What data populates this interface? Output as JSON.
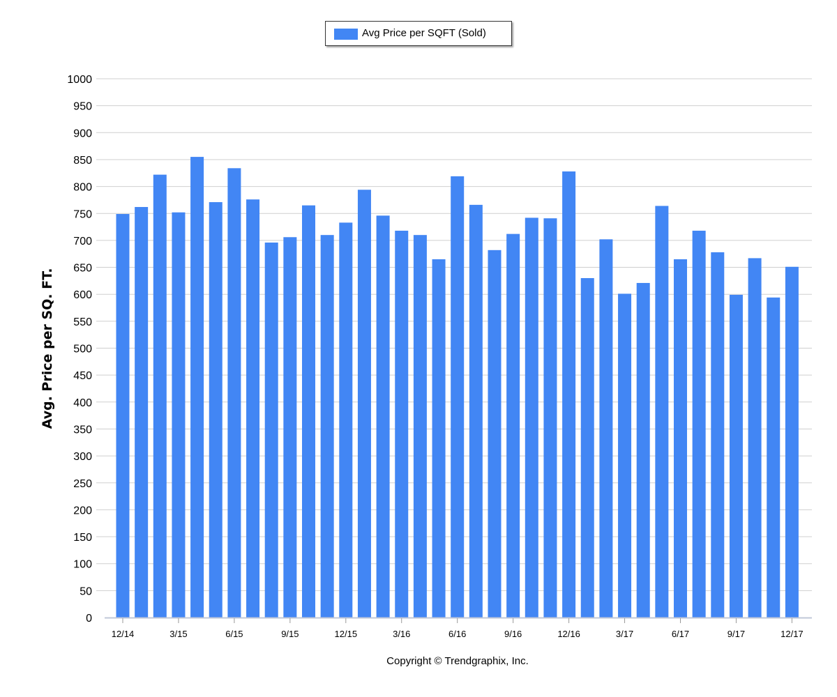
{
  "chart_data": {
    "type": "bar",
    "ylabel": "Avg. Price per SQ. FT.",
    "ylim": [
      0,
      1000
    ],
    "yticks": [
      0,
      50,
      100,
      150,
      200,
      250,
      300,
      350,
      400,
      450,
      500,
      550,
      600,
      650,
      700,
      750,
      800,
      850,
      900,
      950,
      1000
    ],
    "grid": true,
    "legend_position": "top-center",
    "categories": [
      "12/14",
      "1/15",
      "2/15",
      "3/15",
      "4/15",
      "5/15",
      "6/15",
      "7/15",
      "8/15",
      "9/15",
      "10/15",
      "11/15",
      "12/15",
      "1/16",
      "2/16",
      "3/16",
      "4/16",
      "5/16",
      "6/16",
      "7/16",
      "8/16",
      "9/16",
      "10/16",
      "11/16",
      "12/16",
      "1/17",
      "2/17",
      "3/17",
      "4/17",
      "5/17",
      "6/17",
      "7/17",
      "8/17",
      "9/17",
      "10/17",
      "11/17",
      "12/17"
    ],
    "tick_labels": [
      "12/14",
      "",
      "",
      "3/15",
      "",
      "",
      "6/15",
      "",
      "",
      "9/15",
      "",
      "",
      "12/15",
      "",
      "",
      "3/16",
      "",
      "",
      "6/16",
      "",
      "",
      "9/16",
      "",
      "",
      "12/16",
      "",
      "",
      "3/17",
      "",
      "",
      "6/17",
      "",
      "",
      "9/17",
      "",
      "",
      "12/17"
    ],
    "series": [
      {
        "name": "Avg Price per SQFT (Sold)",
        "color": "#4286f4",
        "values": [
          749,
          762,
          822,
          752,
          855,
          771,
          834,
          776,
          696,
          706,
          765,
          710,
          733,
          794,
          746,
          718,
          710,
          665,
          819,
          766,
          682,
          712,
          742,
          741,
          828,
          630,
          702,
          601,
          621,
          764,
          665,
          718,
          678,
          599,
          667,
          594,
          651
        ]
      }
    ]
  },
  "legend": {
    "label": "Avg Price per SQFT (Sold)",
    "color": "#4286f4"
  },
  "footer": {
    "copyright": "Copyright © Trendgraphix, Inc."
  }
}
